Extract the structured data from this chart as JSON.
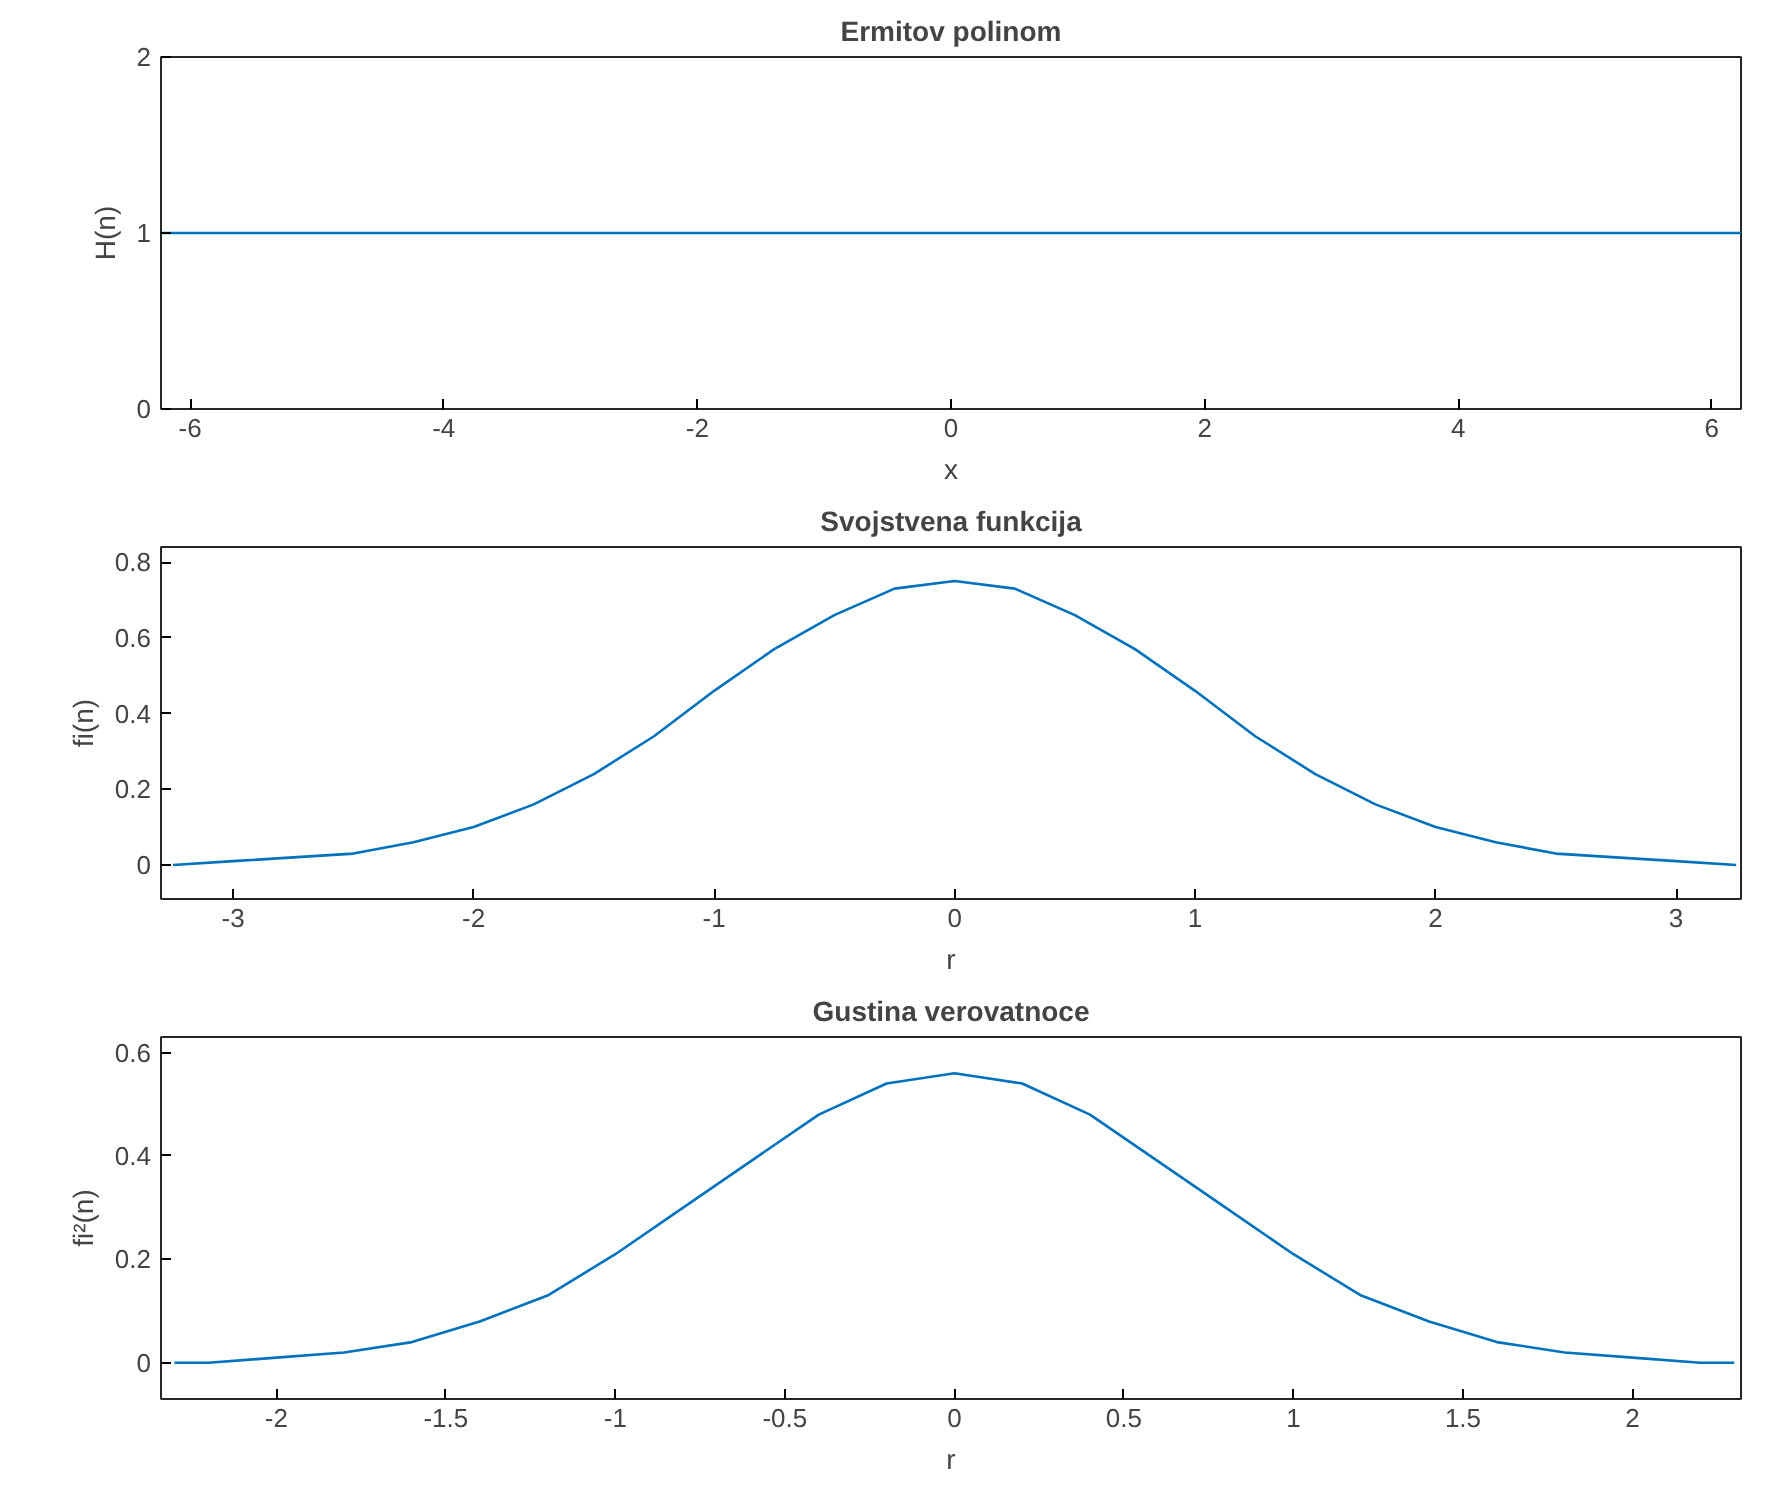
{
  "chart_data": [
    {
      "type": "line",
      "title": "Ermitov polinom",
      "xlabel": "x",
      "ylabel": "H(n)",
      "x": [
        -6.23,
        6.23
      ],
      "series": [
        {
          "color": "#0072bd",
          "values": [
            1,
            1
          ]
        }
      ],
      "xlim": [
        -6.23,
        6.23
      ],
      "ylim": [
        0,
        2
      ],
      "xticks": [
        -6,
        -4,
        -2,
        0,
        2,
        4,
        6
      ],
      "yticks": [
        0,
        1,
        2
      ],
      "grid": false
    },
    {
      "type": "line",
      "title": "Svojstvena funkcija",
      "xlabel": "r",
      "ylabel": "fi(n)",
      "x": [
        -3.25,
        -3,
        -2.75,
        -2.5,
        -2.25,
        -2,
        -1.75,
        -1.5,
        -1.25,
        -1,
        -0.75,
        -0.5,
        -0.25,
        0,
        0.25,
        0.5,
        0.75,
        1,
        1.25,
        1.5,
        1.75,
        2,
        2.25,
        2.5,
        2.75,
        3,
        3.25
      ],
      "series": [
        {
          "color": "#0072bd",
          "values": [
            0.0,
            0.01,
            0.02,
            0.03,
            0.06,
            0.1,
            0.16,
            0.24,
            0.34,
            0.46,
            0.57,
            0.66,
            0.73,
            0.75,
            0.73,
            0.66,
            0.57,
            0.46,
            0.34,
            0.24,
            0.16,
            0.1,
            0.06,
            0.03,
            0.02,
            0.01,
            0.0
          ]
        }
      ],
      "xlim": [
        -3.3,
        3.27
      ],
      "ylim": [
        -0.09,
        0.84
      ],
      "xticks": [
        -3,
        -2,
        -1,
        0,
        1,
        2,
        3
      ],
      "yticks": [
        0,
        0.2,
        0.4,
        0.6,
        0.8
      ],
      "grid": false
    },
    {
      "type": "line",
      "title": "Gustina verovatnoce",
      "xlabel": "r",
      "ylabel": "fi²(n)",
      "x": [
        -2.3,
        -2.2,
        -2.0,
        -1.8,
        -1.6,
        -1.4,
        -1.2,
        -1.0,
        -0.8,
        -0.6,
        -0.4,
        -0.2,
        0,
        0.2,
        0.4,
        0.6,
        0.8,
        1.0,
        1.2,
        1.4,
        1.6,
        1.8,
        2.0,
        2.2,
        2.3
      ],
      "series": [
        {
          "color": "#0072bd",
          "values": [
            0.0,
            0.0,
            0.01,
            0.02,
            0.04,
            0.08,
            0.13,
            0.21,
            0.3,
            0.39,
            0.48,
            0.54,
            0.56,
            0.54,
            0.48,
            0.39,
            0.3,
            0.21,
            0.13,
            0.08,
            0.04,
            0.02,
            0.01,
            0.0,
            0.0
          ]
        }
      ],
      "xlim": [
        -2.34,
        2.32
      ],
      "ylim": [
        -0.07,
        0.63
      ],
      "xticks": [
        -2,
        -1.5,
        -1,
        -0.5,
        0,
        0.5,
        1,
        1.5,
        2
      ],
      "yticks": [
        0,
        0.2,
        0.4,
        0.6
      ],
      "grid": false
    }
  ]
}
